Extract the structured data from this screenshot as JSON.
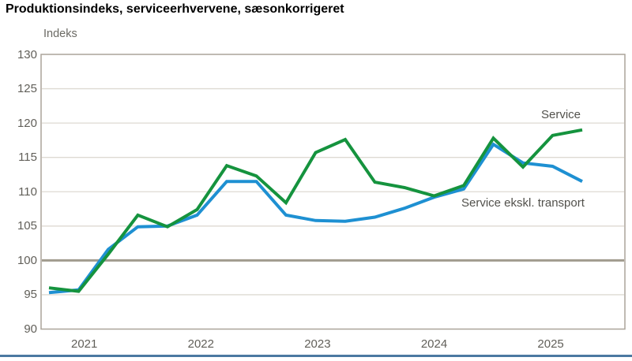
{
  "title": "Produktionsindeks, serviceerhvervene, sæsonkorrigeret",
  "chart_data": {
    "type": "line",
    "title": "Produktionsindeks, serviceerhvervene, sæsonkorrigeret",
    "ylabel": "Indeks",
    "xlabel": "",
    "ylim": [
      90,
      130
    ],
    "ytick_step": 5,
    "y_tick_labels": [
      "130",
      "125",
      "120",
      "115",
      "110",
      "105",
      "100",
      "95",
      "90"
    ],
    "x_tick_labels": [
      "2021",
      "2022",
      "2023",
      "2024",
      "2025"
    ],
    "baseline": 100,
    "grid": true,
    "legend_position": "inline-annotations",
    "categories": [
      "2020 Q4",
      "2021 Q1",
      "2021 Q2",
      "2021 Q3",
      "2021 Q4",
      "2022 Q1",
      "2022 Q2",
      "2022 Q3",
      "2022 Q4",
      "2023 Q1",
      "2023 Q2",
      "2023 Q3",
      "2023 Q4",
      "2024 Q1",
      "2024 Q2",
      "2024 Q3",
      "2024 Q4",
      "2025 Q1",
      "2025 Q2"
    ],
    "series": [
      {
        "name": "Service ekskl. transport",
        "color": "#1e90d2",
        "values": [
          95.3,
          95.7,
          101.6,
          104.9,
          105.0,
          106.6,
          111.5,
          111.5,
          106.6,
          105.8,
          105.7,
          106.3,
          107.6,
          109.2,
          110.4,
          116.9,
          114.2,
          113.7,
          111.5
        ]
      },
      {
        "name": "Service",
        "color": "#15933e",
        "values": [
          96.0,
          95.5,
          100.9,
          106.6,
          104.9,
          107.4,
          113.8,
          112.3,
          108.4,
          115.7,
          117.6,
          111.4,
          110.6,
          109.4,
          110.9,
          117.8,
          113.6,
          118.2,
          119.0
        ]
      }
    ]
  },
  "colors": {
    "grid": "#dedad2",
    "border": "#aba49a",
    "baseline": "#a19b8e",
    "tick_text": "#615f59",
    "footer_rule": "#4b79a1"
  }
}
